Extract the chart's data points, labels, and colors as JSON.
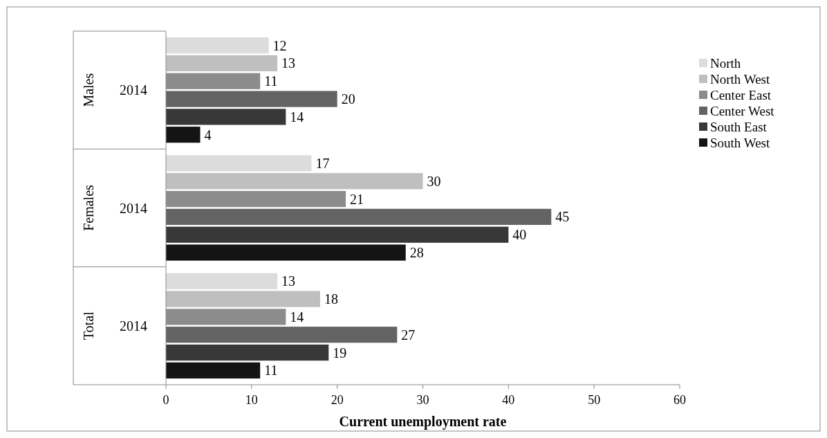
{
  "chart_data": {
    "type": "bar",
    "orientation": "horizontal",
    "xlabel": "Current unemployment rate",
    "categories": [
      "2014",
      "2014",
      "2014"
    ],
    "annotations": [
      "Males",
      "Females",
      "Total"
    ],
    "series": [
      {
        "name": "North",
        "color": "#dcdcdc",
        "values": [
          12,
          17,
          13
        ]
      },
      {
        "name": "North West",
        "color": "#bfbfbf",
        "values": [
          13,
          30,
          18
        ]
      },
      {
        "name": "Center East",
        "color": "#8c8c8c",
        "values": [
          11,
          21,
          14
        ]
      },
      {
        "name": "Center West",
        "color": "#636363",
        "values": [
          20,
          45,
          27
        ]
      },
      {
        "name": "South East",
        "color": "#383838",
        "values": [
          14,
          40,
          19
        ]
      },
      {
        "name": "South West",
        "color": "#141414",
        "values": [
          4,
          28,
          11
        ]
      }
    ],
    "xlim": [
      0,
      60
    ],
    "xticks": [
      0,
      10,
      20,
      30,
      40,
      50,
      60
    ],
    "data_labels": true,
    "legend": "right",
    "grid": false
  }
}
